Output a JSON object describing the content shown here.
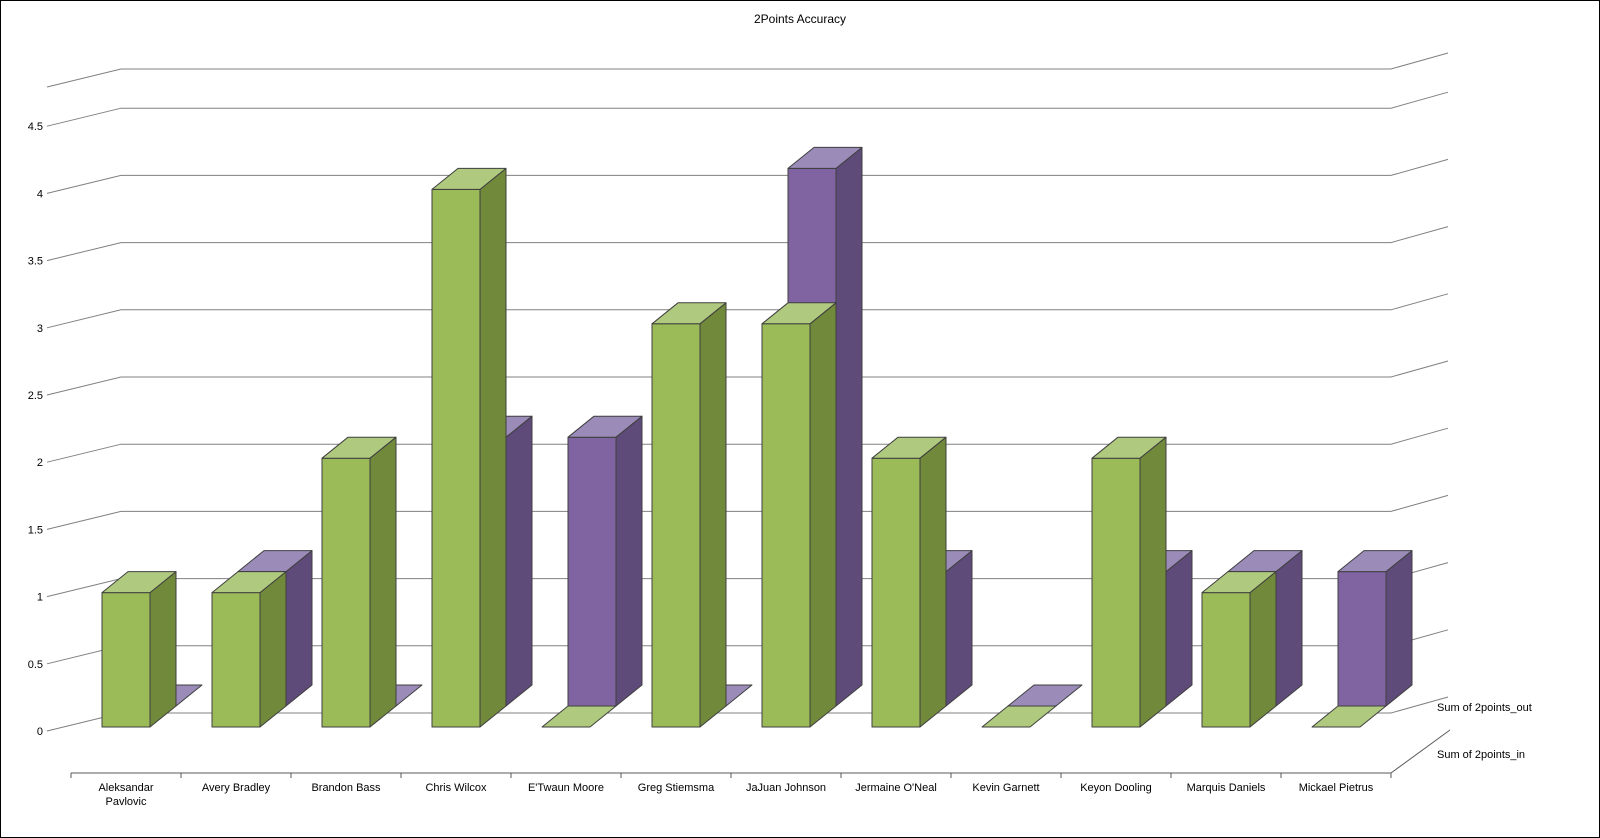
{
  "title": "2Points Accuracy",
  "colors": {
    "background": "#FFFFFF",
    "gridline": "#808080",
    "axis": "#595959",
    "bar_outline": "#3F3F3F",
    "text": "#000000"
  },
  "chart_data": {
    "type": "bar",
    "projection": "3d-column",
    "title": "2Points Accuracy",
    "categories": [
      "Aleksandar\nPavlovic",
      "Avery Bradley",
      "Brandon Bass",
      "Chris Wilcox",
      "E'Twaun Moore",
      "Greg Stiemsma",
      "JaJuan Johnson",
      "Jermaine O'Neal",
      "Kevin Garnett",
      "Keyon Dooling",
      "Marquis Daniels",
      "Mickael Pietrus"
    ],
    "series": [
      {
        "name": "Sum of 2points_in",
        "depth_row": 0,
        "colors": {
          "front": "#9BBB59",
          "top": "#AFC97E",
          "side": "#71893B"
        },
        "values": [
          1,
          1,
          2,
          4,
          0,
          3,
          3,
          2,
          0,
          2,
          1,
          0
        ]
      },
      {
        "name": "Sum of 2points_out",
        "depth_row": 1,
        "colors": {
          "front": "#8064A2",
          "top": "#9A8BB9",
          "side": "#5F4B79"
        },
        "values": [
          0,
          1,
          0,
          2,
          2,
          0,
          4,
          1,
          0,
          1,
          1,
          1
        ]
      }
    ],
    "ylim": [
      0,
      4.5
    ],
    "ytick_step": 0.5,
    "yticks": [
      "0",
      "0.5",
      "1",
      "1.5",
      "2",
      "2.5",
      "3",
      "3.5",
      "4",
      "4.5"
    ],
    "grid": true,
    "legend_position": "right-depth-axis"
  }
}
